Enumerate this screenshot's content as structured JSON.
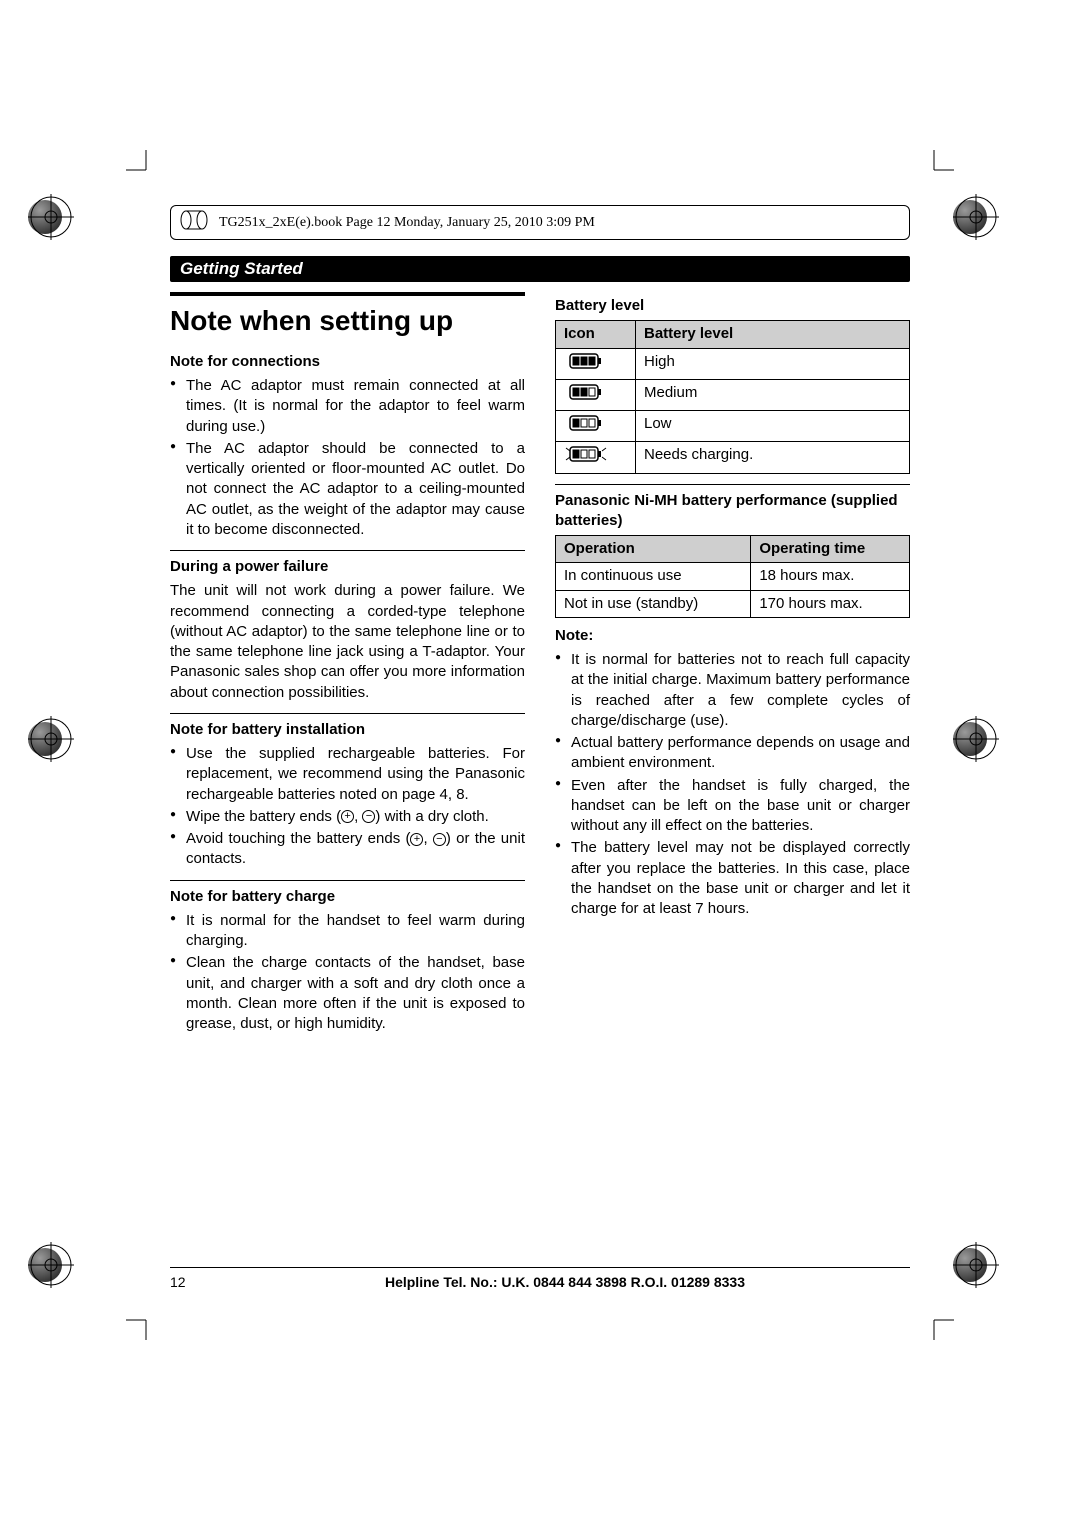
{
  "header_tag": "TG251x_2xE(e).book  Page 12  Monday, January 25, 2010  3:09 PM",
  "section_banner": "Getting Started",
  "title": "Note when setting up",
  "left": {
    "h_connections": "Note for connections",
    "conn_items": [
      "The AC adaptor must remain connected at all times. (It is normal for the adaptor to feel warm during use.)",
      "The AC adaptor should be connected to a vertically oriented or floor-mounted AC outlet. Do not connect the AC adaptor to a ceiling-mounted AC outlet, as the weight of the adaptor may cause it to become disconnected."
    ],
    "h_power_failure": "During a power failure",
    "power_failure_text": "The unit will not work during a power failure. We recommend connecting a corded-type telephone (without AC adaptor) to the same telephone line or to the same telephone line jack using a T-adaptor. Your Panasonic sales shop can offer you more information about connection possibilities.",
    "h_batt_install": "Note for battery installation",
    "batt_install_pre": "Use the supplied rechargeable batteries. For replacement, we recommend using the Panasonic rechargeable batteries noted on page 4, 8.",
    "batt_install_wipe_a": "Wipe the battery ends (",
    "batt_install_wipe_b": ") with a dry cloth.",
    "batt_install_avoid_a": "Avoid touching the battery ends (",
    "batt_install_avoid_b": ") or the unit contacts.",
    "h_batt_charge": "Note for battery charge",
    "batt_charge_items": [
      "It is normal for the handset to feel warm during charging.",
      "Clean the charge contacts of the handset, base unit, and charger with a soft and dry cloth once a month. Clean more often if the unit is exposed to grease, dust, or high humidity."
    ]
  },
  "right": {
    "h_batt_level": "Battery level",
    "batt_table": {
      "head_icon": "Icon",
      "head_level": "Battery level",
      "rows": [
        {
          "bars": 3,
          "blink": false,
          "label": "High"
        },
        {
          "bars": 2,
          "blink": false,
          "label": "Medium"
        },
        {
          "bars": 1,
          "blink": false,
          "label": "Low"
        },
        {
          "bars": 1,
          "blink": true,
          "label": "Needs charging."
        }
      ]
    },
    "h_perf": "Panasonic Ni-MH battery performance (supplied batteries)",
    "perf_table": {
      "head_op": "Operation",
      "head_time": "Operating time",
      "rows": [
        {
          "op": "In continuous use",
          "time": "18 hours max."
        },
        {
          "op": "Not in use (standby)",
          "time": "170 hours max."
        }
      ]
    },
    "h_note": "Note:",
    "note_items": [
      "It is normal for batteries not to reach full capacity at the initial charge. Maximum battery performance is reached after a few complete cycles of charge/discharge (use).",
      "Actual battery performance depends on usage and ambient environment.",
      "Even after the handset is fully charged, the handset can be left on the base unit or charger without any ill effect on the batteries.",
      "The battery level may not be displayed correctly after you replace the batteries. In this case, place the handset on the base unit or charger and let it charge for at least 7 hours."
    ]
  },
  "footer": {
    "page_number": "12",
    "helpline": "Helpline Tel. No.: U.K. 0844 844 3898 R.O.I. 01289 8333"
  },
  "style": {
    "bg": "#ffffff",
    "fg": "#000000",
    "th_bg": "#cfcfcf"
  }
}
